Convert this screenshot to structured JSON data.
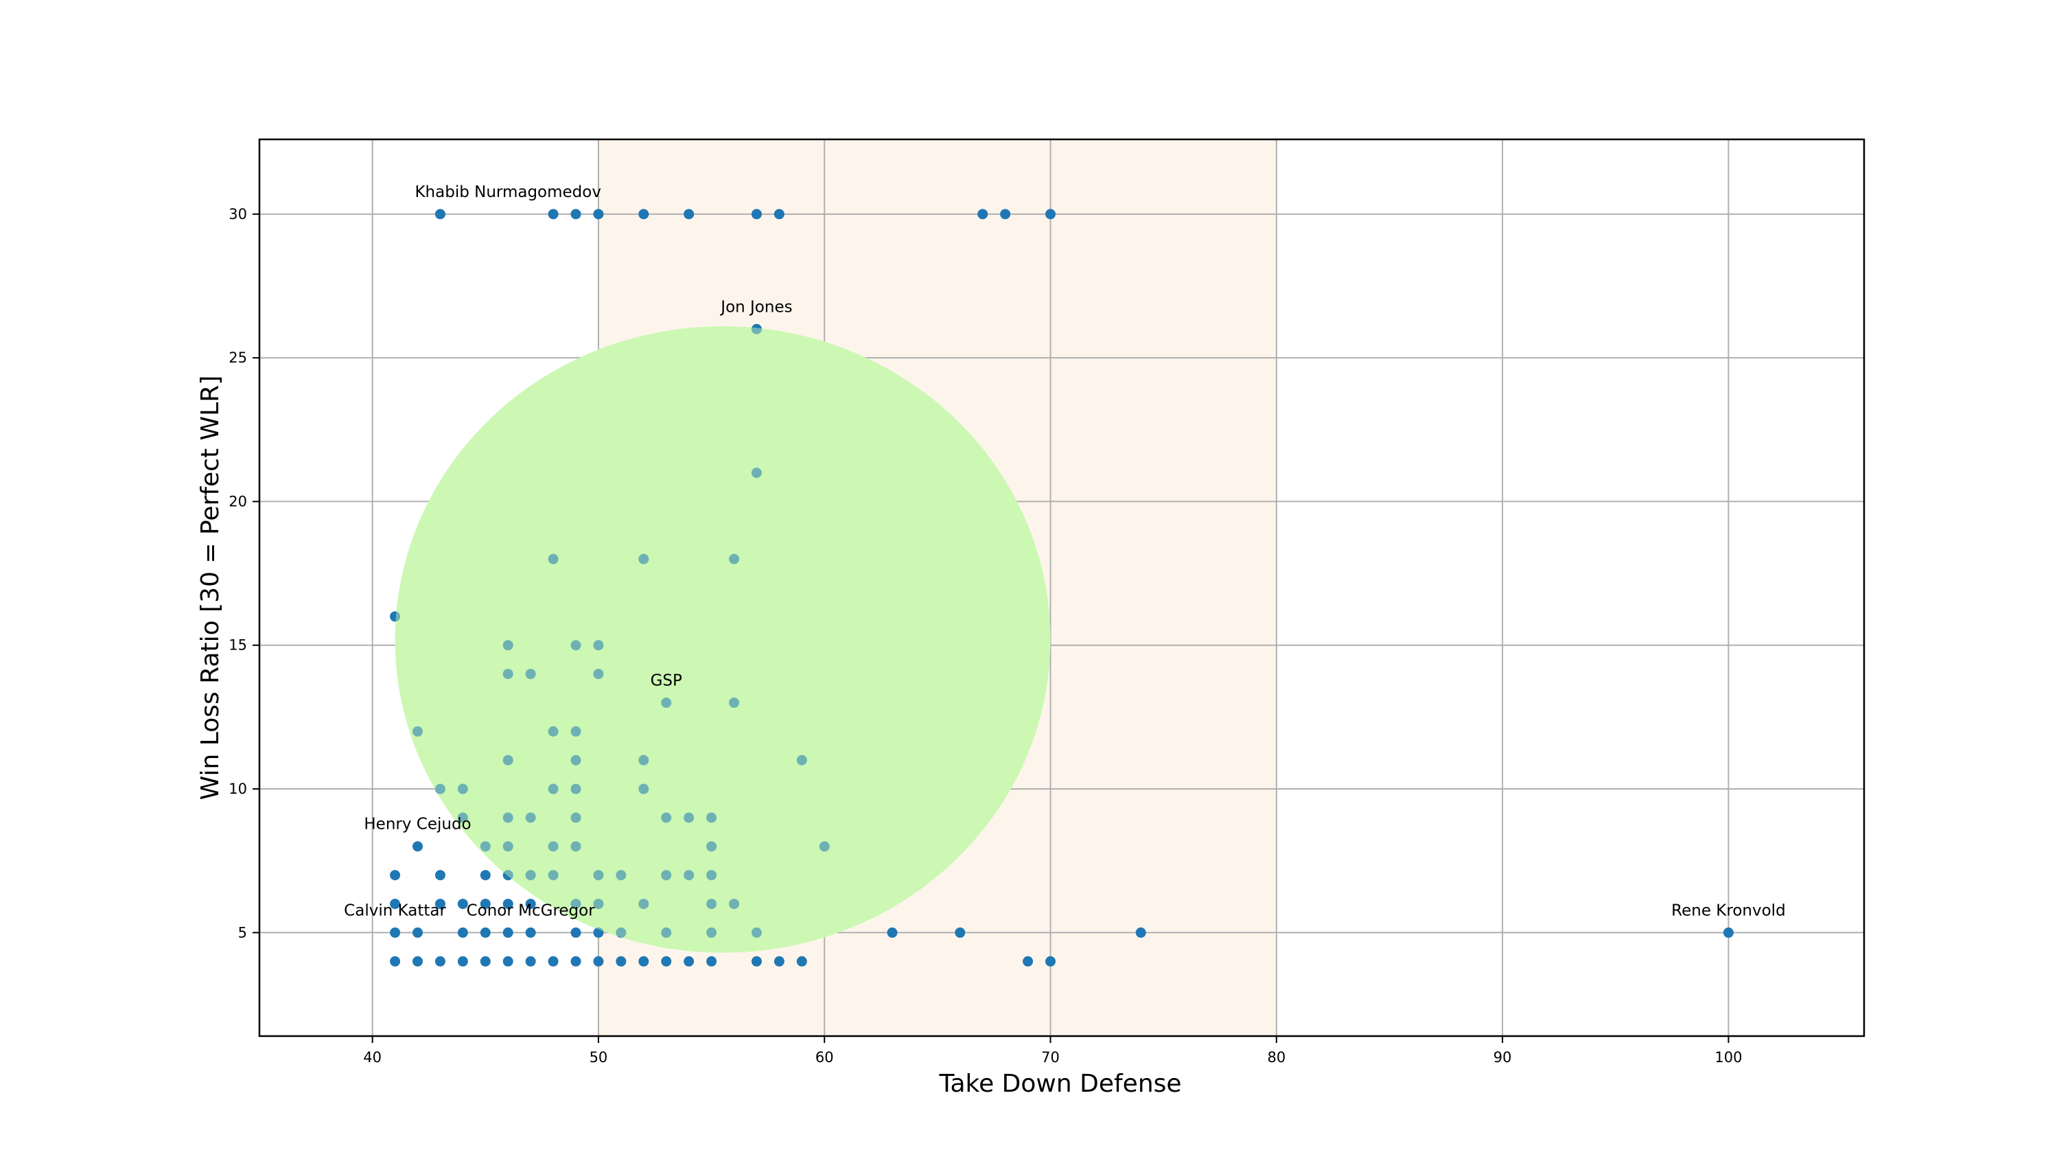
{
  "chart_data": {
    "type": "scatter",
    "xlabel": "Take Down Defense",
    "ylabel": "Win Loss Ratio [30 = Perfect WLR]",
    "xlim": [
      35,
      106
    ],
    "ylim": [
      1.4,
      32.6
    ],
    "xticks": [
      40,
      50,
      60,
      70,
      80,
      90,
      100
    ],
    "yticks": [
      5,
      10,
      15,
      20,
      25,
      30
    ],
    "grid": true,
    "point_color": "#1f77b4",
    "highlight_band": {
      "x_range": [
        50,
        80
      ],
      "color": "#fdf5ec"
    },
    "highlight_circle": {
      "center": [
        55.5,
        15.2
      ],
      "radius_x": 14.5,
      "radius_y": 10.9,
      "color": "#ccf8b4"
    },
    "points": [
      [
        43,
        30
      ],
      [
        48,
        30
      ],
      [
        49,
        30
      ],
      [
        50,
        30
      ],
      [
        52,
        30
      ],
      [
        54,
        30
      ],
      [
        57,
        30
      ],
      [
        58,
        30
      ],
      [
        67,
        30
      ],
      [
        68,
        30
      ],
      [
        70,
        30
      ],
      [
        57,
        26
      ],
      [
        57,
        21
      ],
      [
        48,
        18
      ],
      [
        52,
        18
      ],
      [
        56,
        18
      ],
      [
        41,
        16
      ],
      [
        46,
        15
      ],
      [
        49,
        15
      ],
      [
        50,
        15
      ],
      [
        46,
        14
      ],
      [
        47,
        14
      ],
      [
        50,
        14
      ],
      [
        53,
        13
      ],
      [
        56,
        13
      ],
      [
        42,
        12
      ],
      [
        48,
        12
      ],
      [
        49,
        12
      ],
      [
        46,
        11
      ],
      [
        49,
        11
      ],
      [
        52,
        11
      ],
      [
        59,
        11
      ],
      [
        43,
        10
      ],
      [
        44,
        10
      ],
      [
        48,
        10
      ],
      [
        49,
        10
      ],
      [
        52,
        10
      ],
      [
        44,
        9
      ],
      [
        46,
        9
      ],
      [
        47,
        9
      ],
      [
        49,
        9
      ],
      [
        53,
        9
      ],
      [
        54,
        9
      ],
      [
        55,
        9
      ],
      [
        42,
        8
      ],
      [
        45,
        8
      ],
      [
        46,
        8
      ],
      [
        48,
        8
      ],
      [
        49,
        8
      ],
      [
        55,
        8
      ],
      [
        60,
        8
      ],
      [
        41,
        7
      ],
      [
        43,
        7
      ],
      [
        45,
        7
      ],
      [
        46,
        7
      ],
      [
        47,
        7
      ],
      [
        48,
        7
      ],
      [
        50,
        7
      ],
      [
        51,
        7
      ],
      [
        53,
        7
      ],
      [
        54,
        7
      ],
      [
        55,
        7
      ],
      [
        41,
        6
      ],
      [
        43,
        6
      ],
      [
        44,
        6
      ],
      [
        45,
        6
      ],
      [
        46,
        6
      ],
      [
        47,
        6
      ],
      [
        49,
        6
      ],
      [
        50,
        6
      ],
      [
        52,
        6
      ],
      [
        55,
        6
      ],
      [
        56,
        6
      ],
      [
        41,
        5
      ],
      [
        42,
        5
      ],
      [
        44,
        5
      ],
      [
        45,
        5
      ],
      [
        46,
        5
      ],
      [
        47,
        5
      ],
      [
        49,
        5
      ],
      [
        50,
        5
      ],
      [
        51,
        5
      ],
      [
        53,
        5
      ],
      [
        55,
        5
      ],
      [
        57,
        5
      ],
      [
        63,
        5
      ],
      [
        66,
        5
      ],
      [
        74,
        5
      ],
      [
        100,
        5
      ],
      [
        41,
        4
      ],
      [
        42,
        4
      ],
      [
        43,
        4
      ],
      [
        44,
        4
      ],
      [
        45,
        4
      ],
      [
        46,
        4
      ],
      [
        47,
        4
      ],
      [
        48,
        4
      ],
      [
        49,
        4
      ],
      [
        50,
        4
      ],
      [
        51,
        4
      ],
      [
        52,
        4
      ],
      [
        53,
        4
      ],
      [
        54,
        4
      ],
      [
        55,
        4
      ],
      [
        57,
        4
      ],
      [
        58,
        4
      ],
      [
        59,
        4
      ],
      [
        69,
        4
      ],
      [
        70,
        4
      ]
    ],
    "annotations": [
      {
        "text": "Khabib Nurmagomedov",
        "x": 46,
        "y": 30
      },
      {
        "text": "Jon Jones",
        "x": 57,
        "y": 26
      },
      {
        "text": "GSP",
        "x": 53,
        "y": 13
      },
      {
        "text": "Henry Cejudo",
        "x": 42,
        "y": 8
      },
      {
        "text": "Calvin Kattar",
        "x": 41,
        "y": 5
      },
      {
        "text": "Conor McGregor",
        "x": 47,
        "y": 5
      },
      {
        "text": "Rene Kronvold",
        "x": 100,
        "y": 5
      }
    ]
  }
}
